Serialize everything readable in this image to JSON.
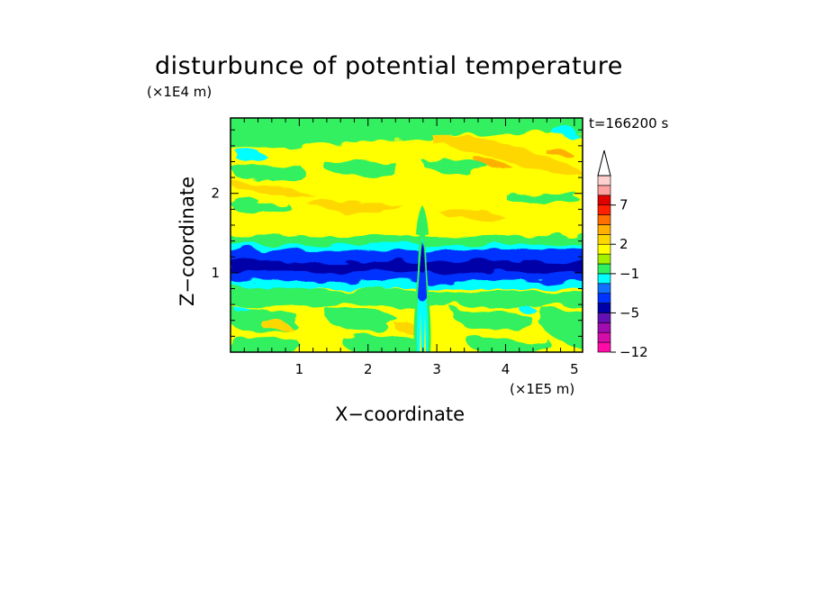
{
  "chart_data": {
    "type": "heatmap",
    "title": "disturbunce of potential temperature",
    "xlabel": "X−coordinate",
    "ylabel": "Z−coordinate",
    "x_unit": "(×1E5 m)",
    "y_unit": "(×1E4 m)",
    "time_label": "t=166200 s",
    "xlim": [
      0,
      5.12
    ],
    "ylim": [
      0,
      2.95
    ],
    "x_ticks": [
      1,
      2,
      3,
      4,
      5
    ],
    "x_tick_labels": [
      "1",
      "2",
      "3",
      "4",
      "5"
    ],
    "y_ticks": [
      1,
      2
    ],
    "y_tick_labels": [
      "1",
      "2"
    ],
    "grid": false,
    "colorbar": {
      "levels": [
        -12,
        -10,
        -8,
        -6,
        -5,
        -4,
        -3,
        -2,
        -1,
        0,
        1,
        2,
        3,
        4,
        5,
        7,
        9,
        11
      ],
      "tick_labels": [
        {
          "value": 7,
          "label": "7"
        },
        {
          "value": 2,
          "label": "2"
        },
        {
          "value": -1,
          "label": "−1"
        },
        {
          "value": -5,
          "label": "−5"
        },
        {
          "value": -12,
          "label": "−12"
        }
      ],
      "colors": [
        "#ff0ca8",
        "#d40caa",
        "#a00cb0",
        "#6410b4",
        "#0000a8",
        "#0033ff",
        "#1070ff",
        "#00ffff",
        "#30f060",
        "#a0f000",
        "#ffff00",
        "#ffd700",
        "#ffb000",
        "#ff7000",
        "#ff2000",
        "#e00000",
        "#ffa0a0",
        "#ffd0d0"
      ],
      "extend": "max"
    },
    "contour_bands": [
      {
        "z": [
          2.45,
          2.95
        ],
        "level": 1,
        "note": "weak positive with light-green and cyan patches"
      },
      {
        "z": [
          1.45,
          2.45
        ],
        "level": 1,
        "note": "yellow with orange streaks near z 1.5-1.7 and upper right"
      },
      {
        "z": [
          1.3,
          1.45
        ],
        "level": -1,
        "note": "light green and cyan transition"
      },
      {
        "z": [
          0.8,
          1.3
        ],
        "level": -4,
        "note": "strong cold anomaly band (blue), minimum near z 1.0-1.2"
      },
      {
        "z": [
          0.6,
          0.8
        ],
        "level": -1,
        "note": "cyan and green transition"
      },
      {
        "z": [
          0.0,
          0.6
        ],
        "level": 0,
        "note": "mixed green and yellow, plume near x 2.75"
      }
    ],
    "features": [
      {
        "x": 2.75,
        "z": [
          0.0,
          1.75
        ],
        "note": "narrow vertical wave plume, dark blue peak near z 1.4"
      }
    ]
  }
}
